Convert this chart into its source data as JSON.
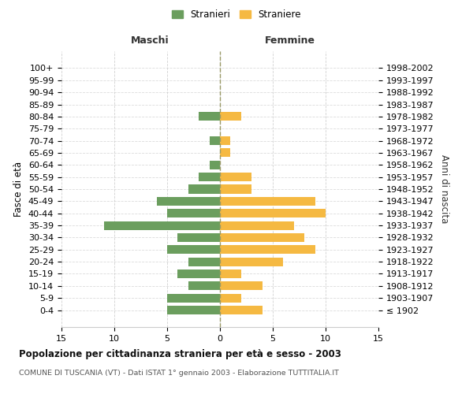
{
  "age_groups": [
    "100+",
    "95-99",
    "90-94",
    "85-89",
    "80-84",
    "75-79",
    "70-74",
    "65-69",
    "60-64",
    "55-59",
    "50-54",
    "45-49",
    "40-44",
    "35-39",
    "30-34",
    "25-29",
    "20-24",
    "15-19",
    "10-14",
    "5-9",
    "0-4"
  ],
  "birth_years": [
    "≤ 1902",
    "1903-1907",
    "1908-1912",
    "1913-1917",
    "1918-1922",
    "1923-1927",
    "1928-1932",
    "1933-1937",
    "1938-1942",
    "1943-1947",
    "1948-1952",
    "1953-1957",
    "1958-1962",
    "1963-1967",
    "1968-1972",
    "1973-1977",
    "1978-1982",
    "1983-1987",
    "1988-1992",
    "1993-1997",
    "1998-2002"
  ],
  "males": [
    0,
    0,
    0,
    0,
    2,
    0,
    1,
    0,
    1,
    2,
    3,
    6,
    5,
    11,
    4,
    5,
    3,
    4,
    3,
    5,
    5
  ],
  "females": [
    0,
    0,
    0,
    0,
    2,
    0,
    1,
    1,
    0,
    3,
    3,
    9,
    10,
    7,
    8,
    9,
    6,
    2,
    4,
    2,
    4
  ],
  "male_color": "#6b9e5e",
  "female_color": "#f5b942",
  "title": "Popolazione per cittadinanza straniera per età e sesso - 2003",
  "subtitle": "COMUNE DI TUSCANIA (VT) - Dati ISTAT 1° gennaio 2003 - Elaborazione TUTTITALIA.IT",
  "legend_male": "Stranieri",
  "legend_female": "Straniere",
  "xlabel_left": "Maschi",
  "xlabel_right": "Femmine",
  "ylabel_left": "Fasce di età",
  "ylabel_right": "Anni di nascita",
  "xlim": 15,
  "background_color": "#ffffff",
  "grid_color": "#cccccc"
}
